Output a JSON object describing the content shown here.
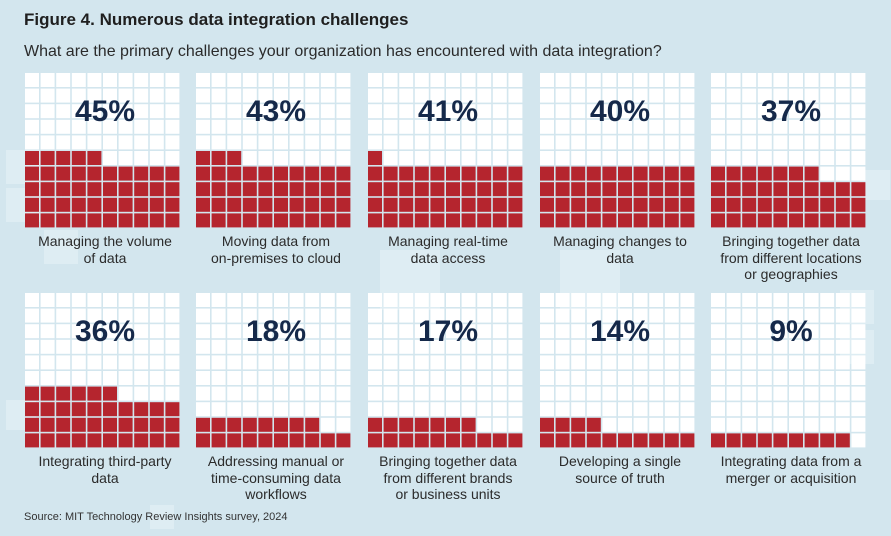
{
  "title": "Figure 4. Numerous data integration challenges",
  "subtitle": "What are the primary challenges your organization has encountered with data integration?",
  "source": "Source: MIT Technology Review Insights survey, 2024",
  "colors": {
    "filled": "#b5252e",
    "empty": "#ffffff",
    "percent_text": "#15294a",
    "background": "#d3e6ee"
  },
  "chart_data": {
    "type": "waffle",
    "title": "Figure 4. Numerous data integration challenges",
    "subtitle": "What are the primary challenges your organization has encountered with data integration?",
    "cells_per_chart": 100,
    "categories": [
      "Managing the volume of data",
      "Moving data from on-premises to cloud",
      "Managing real-time data access",
      "Managing changes to data",
      "Bringing together data from different locations or geographies",
      "Integrating third-party data",
      "Addressing manual or time-consuming data workflows",
      "Bringing together data from different brands or business units",
      "Developing a single source of truth",
      "Integrating data from a merger or acquisition"
    ],
    "values": [
      45,
      43,
      41,
      40,
      37,
      36,
      18,
      17,
      14,
      9
    ],
    "items": [
      {
        "value": 45,
        "pct_label": "45%",
        "label_lines": [
          "Managing the volume",
          "of data"
        ]
      },
      {
        "value": 43,
        "pct_label": "43%",
        "label_lines": [
          "Moving data from",
          "on-premises to cloud"
        ]
      },
      {
        "value": 41,
        "pct_label": "41%",
        "label_lines": [
          "Managing real-time",
          "data access"
        ]
      },
      {
        "value": 40,
        "pct_label": "40%",
        "label_lines": [
          "Managing changes to",
          "data"
        ]
      },
      {
        "value": 37,
        "pct_label": "37%",
        "label_lines": [
          "Bringing together data",
          "from different locations",
          "or geographies"
        ]
      },
      {
        "value": 36,
        "pct_label": "36%",
        "label_lines": [
          "Integrating third-party",
          "data"
        ]
      },
      {
        "value": 18,
        "pct_label": "18%",
        "label_lines": [
          "Addressing manual or",
          "time-consuming data",
          "workflows"
        ]
      },
      {
        "value": 17,
        "pct_label": "17%",
        "label_lines": [
          "Bringing together data",
          "from different brands",
          "or business units"
        ]
      },
      {
        "value": 14,
        "pct_label": "14%",
        "label_lines": [
          "Developing a single",
          "source of truth"
        ]
      },
      {
        "value": 9,
        "pct_label": "9%",
        "label_lines": [
          "Integrating data from a",
          "merger or acquisition"
        ]
      }
    ]
  }
}
